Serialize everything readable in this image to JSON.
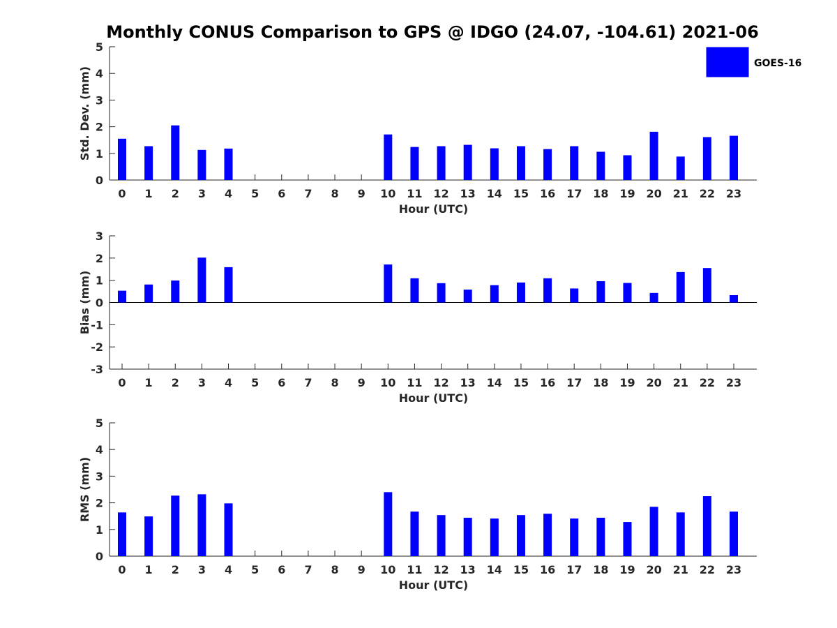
{
  "chart_data": {
    "type": "bar",
    "title": "Monthly CONUS Comparison to GPS @ IDGO (24.07, -104.61) 2021-06",
    "legend": {
      "entries": [
        "GOES-16"
      ],
      "placement": "top-right"
    },
    "series_color": "#0000ff",
    "categories": [
      "0",
      "1",
      "2",
      "3",
      "4",
      "5",
      "6",
      "7",
      "8",
      "9",
      "10",
      "11",
      "12",
      "13",
      "14",
      "15",
      "16",
      "17",
      "18",
      "19",
      "20",
      "21",
      "22",
      "23"
    ],
    "panels": [
      {
        "name": "std-dev",
        "xlabel": "Hour (UTC)",
        "ylabel": "Std. Dev. (mm)",
        "ylim": [
          0,
          5
        ],
        "yticks": [
          "0",
          "1",
          "2",
          "3",
          "4",
          "5"
        ],
        "values": [
          1.55,
          1.27,
          2.05,
          1.13,
          1.18,
          null,
          null,
          null,
          null,
          null,
          1.71,
          1.24,
          1.27,
          1.32,
          1.19,
          1.27,
          1.16,
          1.27,
          1.06,
          0.93,
          1.81,
          0.88,
          1.61,
          1.66
        ]
      },
      {
        "name": "bias",
        "xlabel": "Hour (UTC)",
        "ylabel": "Bias (mm)",
        "ylim": [
          -3,
          3
        ],
        "yticks": [
          "-3",
          "-2",
          "-1",
          "0",
          "1",
          "2",
          "3"
        ],
        "values": [
          0.53,
          0.81,
          0.99,
          2.02,
          1.59,
          null,
          null,
          null,
          null,
          null,
          1.71,
          1.09,
          0.87,
          0.58,
          0.78,
          0.9,
          1.09,
          0.63,
          0.96,
          0.88,
          0.43,
          1.37,
          1.55,
          0.33
        ]
      },
      {
        "name": "rms",
        "xlabel": "Hour (UTC)",
        "ylabel": "RMS (mm)",
        "ylim": [
          0,
          5
        ],
        "yticks": [
          "0",
          "1",
          "2",
          "3",
          "4",
          "5"
        ],
        "values": [
          1.64,
          1.49,
          2.27,
          2.32,
          1.98,
          null,
          null,
          null,
          null,
          null,
          2.4,
          1.67,
          1.54,
          1.44,
          1.41,
          1.54,
          1.59,
          1.41,
          1.44,
          1.28,
          1.85,
          1.64,
          2.25,
          1.67
        ]
      }
    ]
  }
}
